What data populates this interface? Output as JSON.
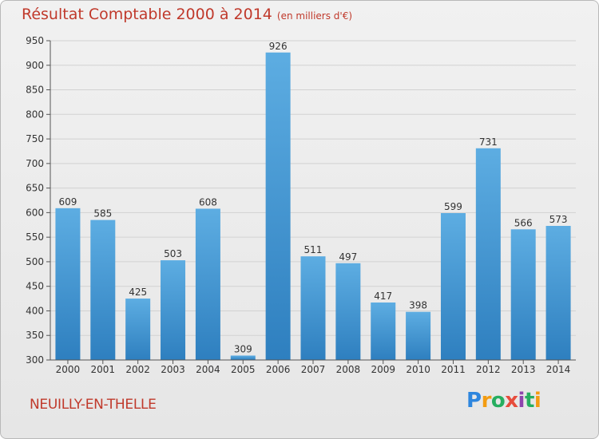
{
  "header": {
    "title": "Résultat Comptable 2000 à 2014",
    "subtitle": "(en milliers d'€)"
  },
  "commune": "NEUILLY-EN-THELLE",
  "logo": {
    "letters": [
      {
        "char": "P",
        "color": "#2e86de"
      },
      {
        "char": "r",
        "color": "#f39c12"
      },
      {
        "char": "o",
        "color": "#27ae60"
      },
      {
        "char": "x",
        "color": "#e74c3c"
      },
      {
        "char": "i",
        "color": "#8e44ad"
      },
      {
        "char": "t",
        "color": "#27ae60"
      },
      {
        "char": "i",
        "color": "#f39c12"
      }
    ]
  },
  "chart_data": {
    "type": "bar",
    "categories": [
      "2000",
      "2001",
      "2002",
      "2003",
      "2004",
      "2005",
      "2006",
      "2007",
      "2008",
      "2009",
      "2010",
      "2011",
      "2012",
      "2013",
      "2014"
    ],
    "values": [
      609,
      585,
      425,
      503,
      608,
      309,
      926,
      511,
      497,
      417,
      398,
      599,
      731,
      566,
      573
    ],
    "ylim": [
      300,
      950
    ],
    "yticks": [
      300,
      350,
      400,
      450,
      500,
      550,
      600,
      650,
      700,
      750,
      800,
      850,
      900,
      950
    ],
    "grid": true,
    "bar_color_top": "#5dade2",
    "bar_color_bottom": "#2e7fbf"
  }
}
